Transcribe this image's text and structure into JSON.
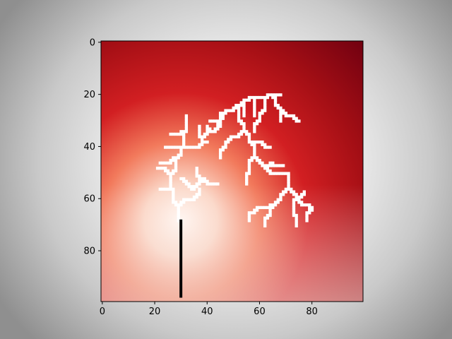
{
  "chart_data": {
    "type": "heatmap",
    "title": "",
    "xlabel": "",
    "ylabel": "",
    "xlim": [
      0,
      99
    ],
    "ylim": [
      99,
      0
    ],
    "x_ticks": [
      0,
      20,
      40,
      60,
      80
    ],
    "y_ticks": [
      0,
      20,
      40,
      60,
      80
    ],
    "grid": false,
    "colormap": "Reds",
    "colors": {
      "low": "#fff5f0",
      "mid": "#d21f22",
      "high": "#67000d",
      "cluster": "#ffffff",
      "stem": "#000000"
    },
    "hotspot": [
      30,
      68
    ],
    "stem": {
      "x": 30,
      "y": [
        68,
        98
      ]
    },
    "branches": [
      [
        [
          30,
          68
        ],
        [
          29,
          62
        ],
        [
          27,
          56
        ],
        [
          26,
          50
        ],
        [
          28,
          44
        ],
        [
          30,
          40
        ],
        [
          31,
          34
        ],
        [
          32,
          28
        ]
      ],
      [
        [
          27,
          56
        ],
        [
          22,
          56
        ]
      ],
      [
        [
          26,
          50
        ],
        [
          21,
          48
        ]
      ],
      [
        [
          28,
          44
        ],
        [
          22,
          46
        ]
      ],
      [
        [
          30,
          40
        ],
        [
          24,
          40
        ]
      ],
      [
        [
          31,
          34
        ],
        [
          26,
          35
        ]
      ],
      [
        [
          30,
          40
        ],
        [
          36,
          40
        ],
        [
          40,
          38
        ]
      ],
      [
        [
          29,
          62
        ],
        [
          34,
          60
        ],
        [
          37,
          56
        ]
      ],
      [
        [
          30,
          52
        ],
        [
          34,
          56
        ],
        [
          38,
          52
        ],
        [
          40,
          54
        ],
        [
          44,
          54
        ]
      ],
      [
        [
          38,
          52
        ],
        [
          36,
          48
        ]
      ],
      [
        [
          36,
          40
        ],
        [
          38,
          36
        ],
        [
          42,
          34
        ],
        [
          44,
          30
        ],
        [
          46,
          27
        ],
        [
          49,
          26
        ]
      ],
      [
        [
          42,
          34
        ],
        [
          40,
          32
        ]
      ],
      [
        [
          44,
          30
        ],
        [
          41,
          30
        ]
      ],
      [
        [
          38,
          36
        ],
        [
          37,
          32
        ]
      ],
      [
        [
          49,
          26
        ],
        [
          52,
          24
        ],
        [
          55,
          22
        ],
        [
          58,
          21
        ],
        [
          62,
          21
        ],
        [
          64,
          20
        ],
        [
          68,
          20
        ]
      ],
      [
        [
          52,
          24
        ],
        [
          52,
          30
        ],
        [
          54,
          34
        ],
        [
          56,
          38
        ],
        [
          58,
          44
        ],
        [
          62,
          48
        ],
        [
          66,
          50
        ],
        [
          70,
          50
        ]
      ],
      [
        [
          54,
          34
        ],
        [
          50,
          36
        ],
        [
          47,
          40
        ],
        [
          45,
          44
        ]
      ],
      [
        [
          50,
          36
        ],
        [
          48,
          38
        ]
      ],
      [
        [
          56,
          38
        ],
        [
          60,
          38
        ],
        [
          64,
          40
        ]
      ],
      [
        [
          58,
          44
        ],
        [
          56,
          50
        ],
        [
          55,
          54
        ]
      ],
      [
        [
          62,
          48
        ],
        [
          64,
          46
        ],
        [
          69,
          47
        ]
      ],
      [
        [
          70,
          50
        ],
        [
          71,
          56
        ],
        [
          74,
          60
        ],
        [
          78,
          62
        ]
      ],
      [
        [
          71,
          56
        ],
        [
          68,
          60
        ],
        [
          65,
          62
        ],
        [
          60,
          63
        ],
        [
          57,
          65
        ],
        [
          56,
          68
        ]
      ],
      [
        [
          68,
          60
        ],
        [
          64,
          66
        ],
        [
          62,
          70
        ]
      ],
      [
        [
          74,
          60
        ],
        [
          73,
          66
        ],
        [
          74,
          70
        ]
      ],
      [
        [
          78,
          62
        ],
        [
          80,
          64
        ],
        [
          78,
          68
        ]
      ],
      [
        [
          74,
          60
        ],
        [
          77,
          57
        ]
      ],
      [
        [
          62,
          21
        ],
        [
          62,
          26
        ],
        [
          60,
          30
        ],
        [
          58,
          34
        ]
      ],
      [
        [
          58,
          21
        ],
        [
          58,
          28
        ]
      ],
      [
        [
          64,
          20
        ],
        [
          66,
          24
        ],
        [
          68,
          26
        ],
        [
          72,
          28
        ],
        [
          75,
          30
        ]
      ],
      [
        [
          68,
          26
        ],
        [
          68,
          30
        ]
      ],
      [
        [
          55,
          22
        ],
        [
          54,
          28
        ]
      ],
      [
        [
          46,
          27
        ],
        [
          45,
          32
        ]
      ]
    ]
  }
}
